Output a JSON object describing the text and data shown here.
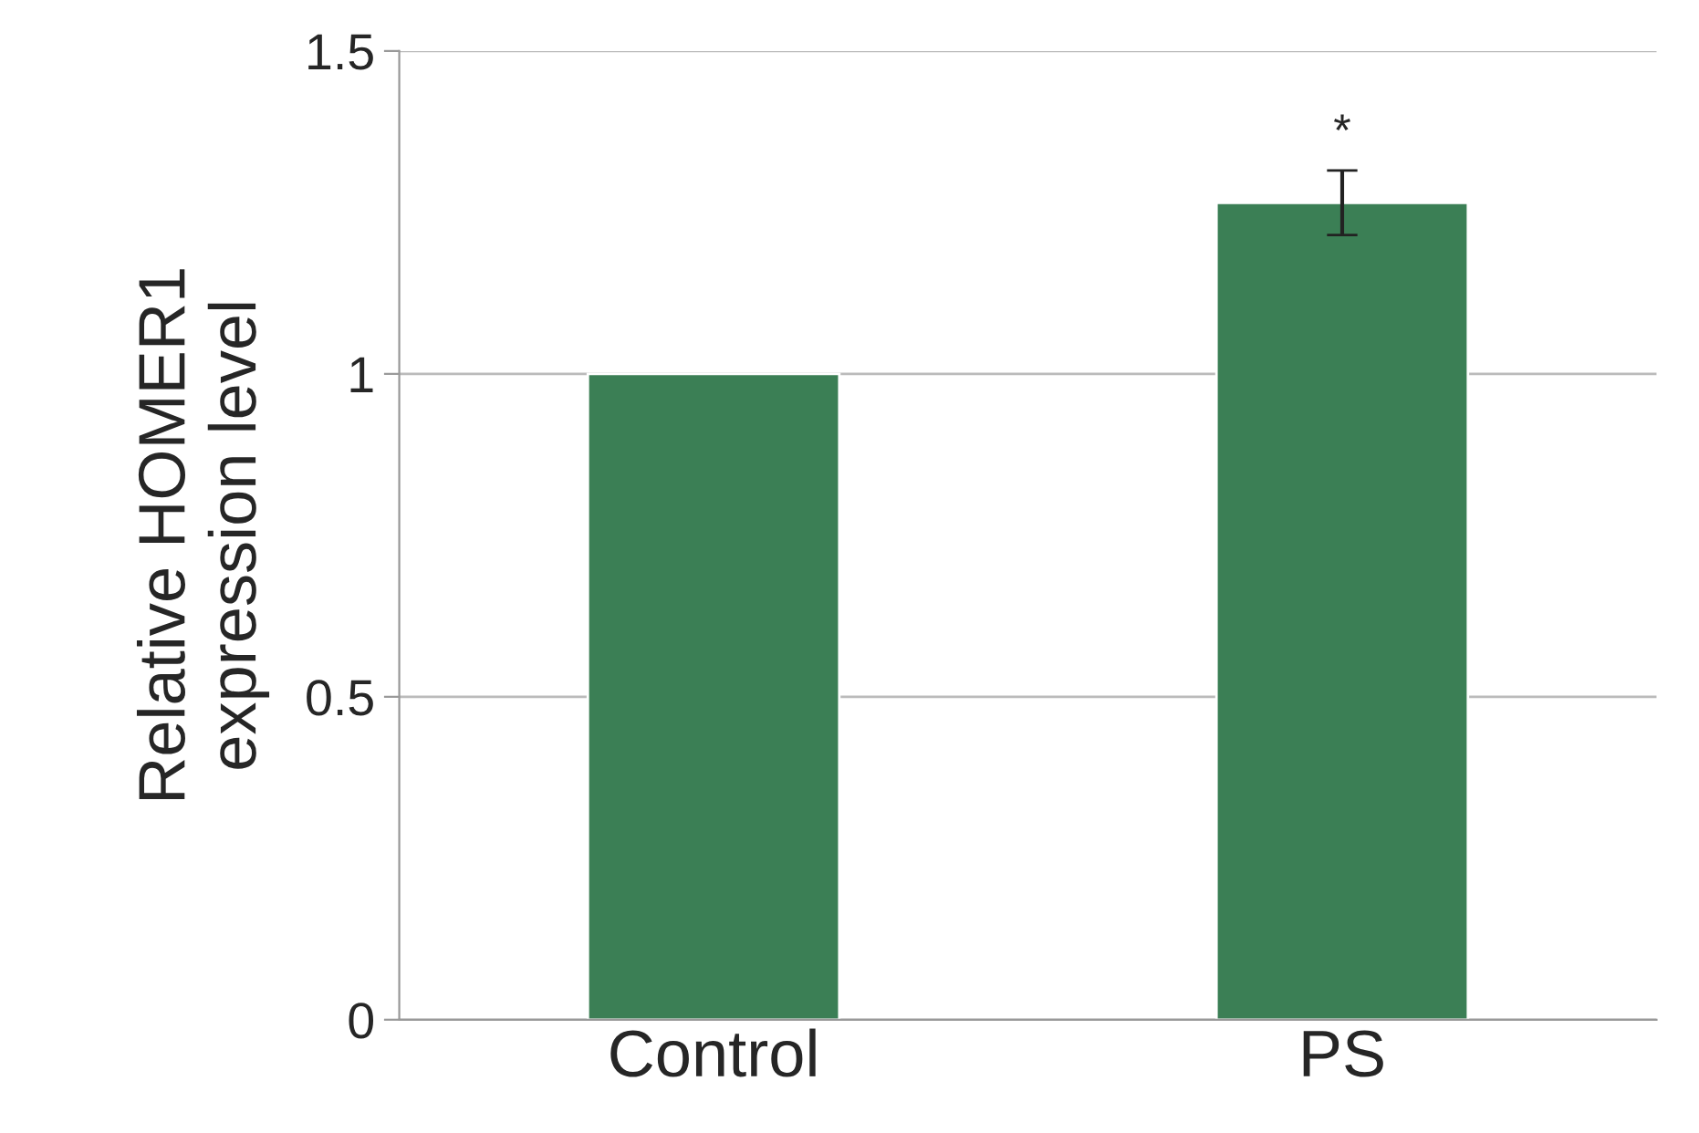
{
  "chart_data": {
    "type": "bar",
    "ylabel": "Relative HOMER1\nexpression level",
    "categories": [
      "Control",
      "PS"
    ],
    "values": [
      1.0,
      1.265
    ],
    "errors": [
      null,
      0.05
    ],
    "color": "#3b7f55",
    "ylim": [
      0,
      1.5
    ],
    "yticks": [
      0,
      0.5,
      1,
      1.5
    ],
    "grid": "y",
    "annotations": [
      {
        "text": "*",
        "x": "PS",
        "y": 1.315
      }
    ]
  }
}
